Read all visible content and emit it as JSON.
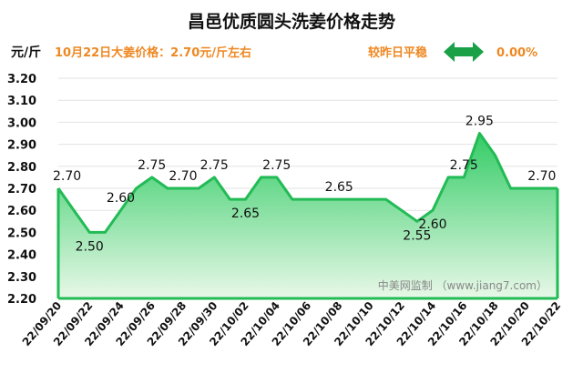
{
  "header": {
    "title": "昌邑优质圆头洗姜价格走势",
    "unit_label": "元/斤",
    "price_info": "10月22日大姜价格：2.70元/斤左右",
    "change_text": "较昨日平稳",
    "change_pct": "0.00%",
    "change_icon": "double-arrow-icon"
  },
  "watermark": "中美网监制 （www.jiang7.com）",
  "colors": {
    "line": "#22bb55",
    "fill_top": "#33cc66",
    "fill_bottom": "#e8f8e8",
    "accent": "#ee8822",
    "arrow": "#1aa148"
  },
  "chart_data": {
    "type": "area",
    "title": "昌邑优质圆头洗姜价格走势",
    "ylabel": "元/斤",
    "xlabel": "",
    "ylim": [
      2.2,
      3.2
    ],
    "yticks": [
      "2.20",
      "2.30",
      "2.40",
      "2.50",
      "2.60",
      "2.70",
      "2.80",
      "2.90",
      "3.00",
      "3.10",
      "3.20"
    ],
    "grid": true,
    "x_tick_labels": [
      "22/09/20",
      "22/09/22",
      "22/09/24",
      "22/09/26",
      "22/09/28",
      "22/09/30",
      "22/10/02",
      "22/10/04",
      "22/10/06",
      "22/10/08",
      "22/10/10",
      "22/10/12",
      "22/10/14",
      "22/10/16",
      "22/10/18",
      "22/10/20",
      "22/10/22"
    ],
    "x": [
      "22/09/20",
      "22/09/21",
      "22/09/22",
      "22/09/23",
      "22/09/24",
      "22/09/25",
      "22/09/26",
      "22/09/27",
      "22/09/28",
      "22/09/29",
      "22/09/30",
      "22/10/01",
      "22/10/02",
      "22/10/03",
      "22/10/04",
      "22/10/05",
      "22/10/06",
      "22/10/07",
      "22/10/08",
      "22/10/09",
      "22/10/10",
      "22/10/11",
      "22/10/12",
      "22/10/13",
      "22/10/14",
      "22/10/15",
      "22/10/16",
      "22/10/17",
      "22/10/18",
      "22/10/19",
      "22/10/20",
      "22/10/21",
      "22/10/22"
    ],
    "values": [
      2.7,
      2.6,
      2.5,
      2.5,
      2.6,
      2.7,
      2.75,
      2.7,
      2.7,
      2.7,
      2.75,
      2.65,
      2.65,
      2.75,
      2.75,
      2.65,
      2.65,
      2.65,
      2.65,
      2.65,
      2.65,
      2.65,
      2.6,
      2.55,
      2.6,
      2.75,
      2.75,
      2.95,
      2.85,
      2.7,
      2.7,
      2.7,
      2.7
    ],
    "data_labels": [
      {
        "x": "22/09/20",
        "text": "2.70",
        "pos": "above"
      },
      {
        "x": "22/09/22",
        "text": "2.50",
        "pos": "below"
      },
      {
        "x": "22/09/24",
        "text": "2.60",
        "pos": "above"
      },
      {
        "x": "22/09/26",
        "text": "2.75",
        "pos": "above"
      },
      {
        "x": "22/09/28",
        "text": "2.70",
        "pos": "above"
      },
      {
        "x": "22/09/30",
        "text": "2.75",
        "pos": "above"
      },
      {
        "x": "22/10/02",
        "text": "2.65",
        "pos": "below"
      },
      {
        "x": "22/10/04",
        "text": "2.75",
        "pos": "above"
      },
      {
        "x": "22/10/08",
        "text": "2.65",
        "pos": "above"
      },
      {
        "x": "22/10/13",
        "text": "2.55",
        "pos": "below"
      },
      {
        "x": "22/10/14",
        "text": "2.60",
        "pos": "below"
      },
      {
        "x": "22/10/16",
        "text": "2.75",
        "pos": "above"
      },
      {
        "x": "22/10/17",
        "text": "2.95",
        "pos": "above"
      },
      {
        "x": "22/10/21",
        "text": "2.70",
        "pos": "above"
      }
    ]
  }
}
